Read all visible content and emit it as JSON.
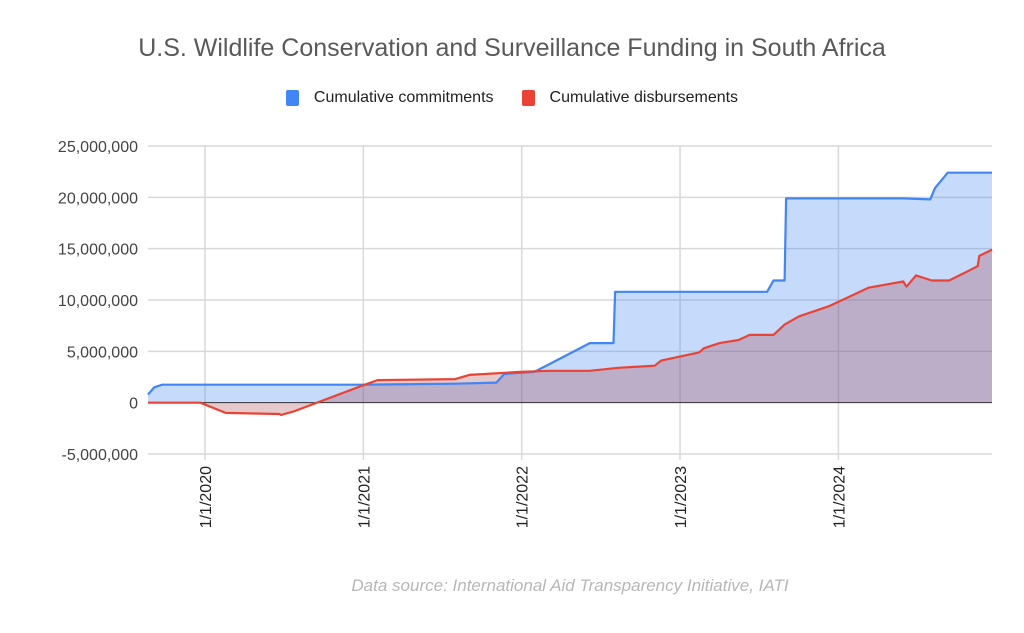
{
  "chart_data": {
    "type": "area",
    "title": "U.S. Wildlife Conservation and Surveillance Funding in South Africa",
    "xlabel": "",
    "ylabel": "",
    "xlim": [
      2019.64,
      2024.97
    ],
    "ylim": [
      -5000000,
      25000000
    ],
    "grid": true,
    "legend_position": "top",
    "y_ticks": [
      {
        "value": 25000000,
        "label": "25,000,000"
      },
      {
        "value": 20000000,
        "label": "20,000,000"
      },
      {
        "value": 15000000,
        "label": "15,000,000"
      },
      {
        "value": 10000000,
        "label": "10,000,000"
      },
      {
        "value": 5000000,
        "label": "5,000,000"
      },
      {
        "value": 0,
        "label": "0"
      },
      {
        "value": -5000000,
        "label": "-5,000,000"
      }
    ],
    "x_ticks": [
      {
        "value": 2020,
        "label": "1/1/2020"
      },
      {
        "value": 2021,
        "label": "1/1/2021"
      },
      {
        "value": 2022,
        "label": "1/1/2022"
      },
      {
        "value": 2023,
        "label": "1/1/2023"
      },
      {
        "value": 2024,
        "label": "1/1/2024"
      }
    ],
    "series": [
      {
        "name": "Cumulative commitments",
        "color": "#4285f4",
        "fill": "#c5d9f7",
        "x": [
          2019.64,
          2019.68,
          2019.73,
          2020.0,
          2021.0,
          2021.58,
          2021.84,
          2021.89,
          2022.08,
          2022.43,
          2022.58,
          2022.59,
          2023.0,
          2023.55,
          2023.59,
          2023.66,
          2023.67,
          2024.0,
          2024.41,
          2024.58,
          2024.61,
          2024.69,
          2024.97
        ],
        "y": [
          800000,
          1500000,
          1750000,
          1750000,
          1750000,
          1850000,
          1950000,
          2800000,
          3000000,
          5800000,
          5800000,
          10800000,
          10800000,
          10800000,
          11900000,
          11900000,
          19900000,
          19900000,
          19900000,
          19800000,
          20900000,
          22400000,
          22400000
        ]
      },
      {
        "name": "Cumulative disbursements",
        "color": "#ea4335",
        "fill": "#f4c7c3",
        "x": [
          2019.64,
          2019.97,
          2020.13,
          2020.47,
          2020.48,
          2020.57,
          2021.0,
          2021.09,
          2021.58,
          2021.67,
          2021.99,
          2022.18,
          2022.43,
          2022.61,
          2022.84,
          2022.88,
          2023.12,
          2023.15,
          2023.25,
          2023.37,
          2023.44,
          2023.59,
          2023.66,
          2023.75,
          2023.94,
          2024.19,
          2024.41,
          2024.43,
          2024.49,
          2024.59,
          2024.7,
          2024.83,
          2024.88,
          2024.89,
          2024.97
        ],
        "y": [
          0,
          0,
          -1000000,
          -1100000,
          -1200000,
          -800000,
          1700000,
          2200000,
          2300000,
          2700000,
          3000000,
          3100000,
          3100000,
          3400000,
          3600000,
          4100000,
          4900000,
          5300000,
          5800000,
          6100000,
          6600000,
          6600000,
          7600000,
          8400000,
          9400000,
          11200000,
          11800000,
          11300000,
          12400000,
          11900000,
          11900000,
          12900000,
          13300000,
          14300000,
          14900000
        ]
      }
    ]
  },
  "source_note": "Data source: International Aid Transparency Initiative, IATI"
}
